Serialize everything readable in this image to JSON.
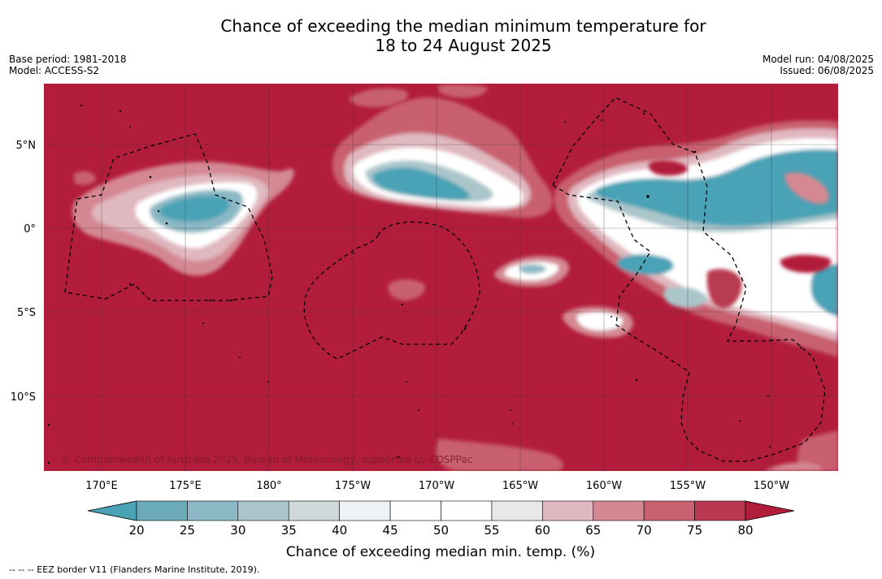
{
  "title_line1": "Chance of exceeding the median minimum temperature for",
  "title_line2": "18 to 24 August 2025",
  "base_period": "Base period: 1981-2018",
  "model": "Model: ACCESS-S2",
  "model_run": "Model run: 04/08/2025",
  "issued": "Issued: 06/08/2025",
  "copyright": "© Commonwealth of Australia 2025, Bureau of Meteorology, supported by COSPPac",
  "lon_ticks": [
    "170°E",
    "175°E",
    "180°",
    "175°W",
    "170°W",
    "165°W",
    "160°W",
    "155°W",
    "150°W"
  ],
  "lat_ticks": [
    "5°N",
    "0°",
    "5°S",
    "10°S"
  ],
  "colorbar": {
    "labels": [
      "20",
      "25",
      "30",
      "35",
      "40",
      "45",
      "50",
      "55",
      "60",
      "65",
      "70",
      "75",
      "80"
    ],
    "title": "Chance of exceeding median min. temp. (%)",
    "colors": {
      "below20": "#4aa2b5",
      "20-25": "#6aaab9",
      "25-30": "#8bb8c4",
      "30-35": "#aac6cb",
      "35-40": "#cfd9db",
      "40-45": "#eef2f4",
      "45-50": "#ffffff",
      "50-55": "#ffffff",
      "55-60": "#e8e8e8",
      "60-65": "#e0b8bf",
      "65-70": "#d48893",
      "70-75": "#c86070",
      "75-80": "#b93a50",
      "above80": "#b21d3b"
    }
  },
  "footnote": "--  --  -- EEZ border V11 (Flanders Marine Institute, 2019)."
}
